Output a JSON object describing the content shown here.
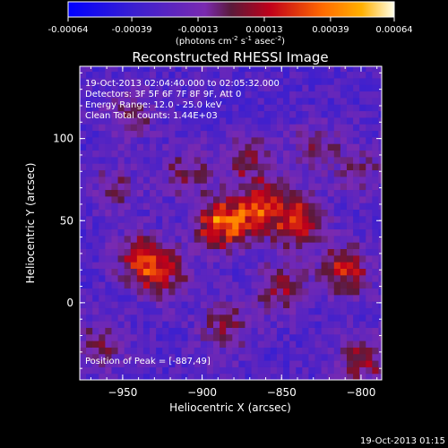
{
  "chart_data": {
    "type": "heatmap",
    "title": "Reconstructed RHESSI Image",
    "xlabel": "Heliocentric X (arcsec)",
    "ylabel": "Heliocentric Y (arcsec)",
    "xlim": [
      -977,
      -787
    ],
    "ylim": [
      -47,
      144
    ],
    "x_ticks": [
      -950,
      -900,
      -850,
      -800
    ],
    "y_ticks": [
      0,
      50,
      100
    ],
    "colorbar": {
      "ticks": [
        "-0.00064",
        "-0.00039",
        "-0.00013",
        "0.00013",
        "0.00039",
        "0.00064"
      ],
      "min": -0.00064,
      "max": 0.00064,
      "label": "(photons cm",
      "label_sup1": "-2",
      "label_mid": " s",
      "label_sup2": "-1",
      "label_mid2": " asec",
      "label_sup3": "-2",
      "label_end": ")"
    },
    "info_lines": [
      "19-Oct-2013 02:04:40.000 to 02:05:32.000",
      "Detectors: 3F 5F 6F 7F 8F 9F, Att 0",
      "Energy Range: 12.0 - 25.0 keV",
      "Clean     Total counts: 1.44E+03"
    ],
    "peak_label": "Position of Peak = [-887,49]",
    "peak": [
      -887,
      49
    ],
    "hot_regions": [
      {
        "x": -887,
        "y": 49,
        "w": 0.00064
      },
      {
        "x": -862,
        "y": 58,
        "w": 0.0005
      },
      {
        "x": -838,
        "y": 50,
        "w": 0.00045
      },
      {
        "x": -810,
        "y": 20,
        "w": 0.00042
      },
      {
        "x": -925,
        "y": 18,
        "w": 0.0004
      },
      {
        "x": -940,
        "y": 28,
        "w": 0.00035
      },
      {
        "x": -870,
        "y": 88,
        "w": 0.0003
      },
      {
        "x": -910,
        "y": 80,
        "w": 0.00025
      },
      {
        "x": -850,
        "y": 10,
        "w": 0.00035
      },
      {
        "x": -885,
        "y": -15,
        "w": 0.0003
      },
      {
        "x": -800,
        "y": -35,
        "w": 0.00035
      },
      {
        "x": -945,
        "y": 115,
        "w": 0.00025
      },
      {
        "x": -955,
        "y": 70,
        "w": 0.0002
      },
      {
        "x": -828,
        "y": 95,
        "w": 0.00022
      },
      {
        "x": -800,
        "y": 80,
        "w": 0.0002
      },
      {
        "x": -962,
        "y": -25,
        "w": 0.00025
      }
    ],
    "limb": "solar-limb-line"
  },
  "footer_timestamp": "19-Oct-2013 01:15"
}
